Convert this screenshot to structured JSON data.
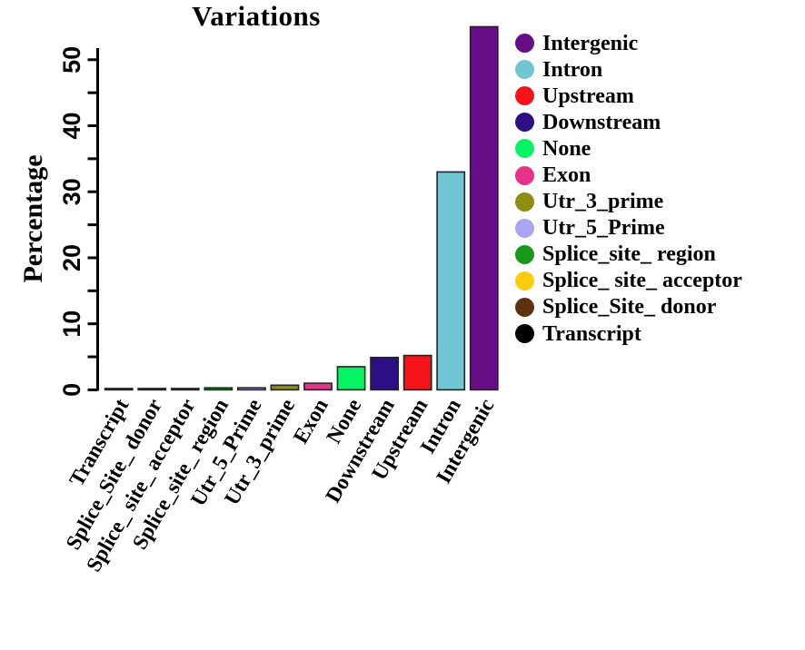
{
  "background": "#ffffff",
  "chart_data": {
    "type": "bar",
    "title": "Variations",
    "xlabel": "",
    "ylabel": "Percentage",
    "ylim": [
      0,
      50
    ],
    "grid": false,
    "yticks_major": [
      0,
      10,
      20,
      30,
      40,
      50
    ],
    "yticks_minor": [
      5,
      15,
      25,
      35,
      45
    ],
    "categories": [
      "Transcript",
      "Splice_Site_ donor",
      "Splice_ site_ acceptor",
      "Splice_site_ region",
      "Utr_5_Prime",
      "Utr_3_prime",
      "Exon",
      "None",
      "Downstream",
      "Upstream",
      "Intron",
      "Intergenic"
    ],
    "values": [
      0.2,
      0.2,
      0.2,
      0.3,
      0.3,
      0.7,
      1.0,
      3.5,
      4.9,
      5.2,
      33,
      55
    ],
    "bar_colors": [
      "#000000",
      "#5F3110",
      "#FFCC0D",
      "#189A18",
      "#A9A5F3",
      "#8E8C11",
      "#E63189",
      "#06F463",
      "#2D0F85",
      "#F41419",
      "#70C6D3",
      "#650E87"
    ],
    "bar_border_color": "#222222",
    "axis_color": "#000000",
    "legend": {
      "position": "right",
      "marker": "circle",
      "items": [
        {
          "label": "Intergenic",
          "color": "#650E87"
        },
        {
          "label": "Intron",
          "color": "#70C6D3"
        },
        {
          "label": "Upstream",
          "color": "#F41419"
        },
        {
          "label": "Downstream",
          "color": "#2D0F85"
        },
        {
          "label": "None",
          "color": "#06F463"
        },
        {
          "label": "Exon",
          "color": "#E63189"
        },
        {
          "label": "Utr_3_prime",
          "color": "#8E8C11"
        },
        {
          "label": "Utr_5_Prime",
          "color": "#A9A5F3"
        },
        {
          "label": "Splice_site_ region",
          "color": "#189A18"
        },
        {
          "label": "Splice_ site_ acceptor",
          "color": "#FFCC0D"
        },
        {
          "label": "Splice_Site_ donor",
          "color": "#5F3110"
        },
        {
          "label": "Transcript",
          "color": "#000000"
        }
      ]
    }
  }
}
